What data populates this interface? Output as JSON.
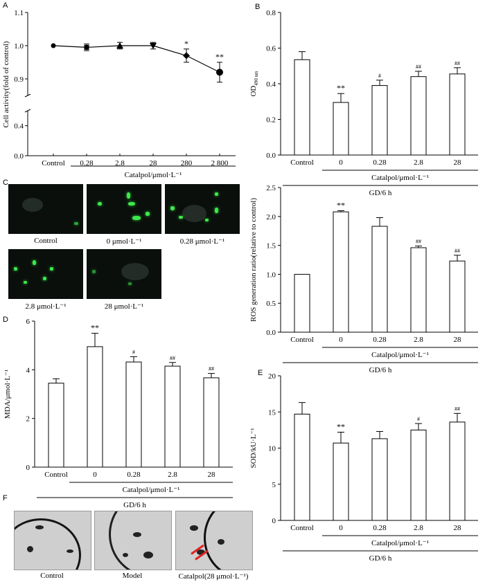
{
  "chart_data": [
    {
      "panel": "A",
      "type": "line",
      "ylabel": "Cell activity(fold of control)",
      "xlabel": "Catalpol/μmol·L⁻¹",
      "categories": [
        "Control",
        "0.28",
        "2.8",
        "28",
        "280",
        "2 800"
      ],
      "values": [
        1.0,
        0.995,
        1.0,
        1.0,
        0.97,
        0.92
      ],
      "errors": [
        0.0,
        0.01,
        0.01,
        0.01,
        0.02,
        0.03
      ],
      "markers": [
        "circle",
        "square",
        "triangle-up",
        "triangle-down",
        "diamond",
        "circle"
      ],
      "annotations": [
        "",
        "",
        "",
        "",
        "*",
        "**"
      ],
      "yticks_upper": [
        "0.9",
        "1.0",
        "1.1"
      ],
      "yticks_lower": [
        "0.4",
        "0.0"
      ],
      "ylim_upper": [
        0.85,
        1.1
      ],
      "ylim_lower": [
        0.0,
        0.6
      ]
    },
    {
      "panel": "B",
      "type": "bar",
      "ylabel": "OD",
      "ylabel_sub": "490 nm",
      "categories": [
        "Control",
        "0",
        "0.28",
        "2.8",
        "28"
      ],
      "values": [
        0.535,
        0.295,
        0.39,
        0.44,
        0.455
      ],
      "errors": [
        0.045,
        0.05,
        0.03,
        0.03,
        0.035
      ],
      "annotations": [
        "",
        "**",
        "#",
        "##",
        "##"
      ],
      "yticks": [
        "0.0",
        "0.2",
        "0.4",
        "0.6",
        "0.8"
      ],
      "ylim": [
        0,
        0.8
      ],
      "group_label": "Catalpol/μmol·L⁻¹",
      "outer_label": "GD/6 h"
    },
    {
      "panel": "ROS",
      "type": "bar",
      "ylabel": "ROS generation ratio(relative to control)",
      "categories": [
        "Control",
        "0",
        "0.28",
        "2.8",
        "28"
      ],
      "values": [
        1.0,
        2.08,
        1.83,
        1.46,
        1.23
      ],
      "errors": [
        0.0,
        0.02,
        0.15,
        0.03,
        0.1
      ],
      "annotations": [
        "",
        "**",
        "",
        "##",
        "##"
      ],
      "yticks": [
        "0.0",
        "0.5",
        "1.0",
        "1.5",
        "2.0",
        "2.5"
      ],
      "ylim": [
        0,
        2.5
      ],
      "group_label": "Catalpol/μmol·L⁻¹",
      "outer_label": "GD/6 h"
    },
    {
      "panel": "D",
      "type": "bar",
      "ylabel": "MDA/μmol·L⁻¹",
      "categories": [
        "Control",
        "0",
        "0.28",
        "2.8",
        "28"
      ],
      "values": [
        3.45,
        4.95,
        4.32,
        4.15,
        3.67
      ],
      "errors": [
        0.18,
        0.55,
        0.22,
        0.15,
        0.18
      ],
      "annotations": [
        "",
        "**",
        "#",
        "##",
        "##"
      ],
      "yticks": [
        "0",
        "2",
        "4",
        "6"
      ],
      "ylim": [
        0,
        6
      ],
      "group_label": "Catalpol/μmol·L⁻¹",
      "outer_label": "GD/6 h"
    },
    {
      "panel": "E",
      "type": "bar",
      "ylabel": "SOD/kU·L⁻¹",
      "categories": [
        "Control",
        "0",
        "0.28",
        "2.8",
        "28"
      ],
      "values": [
        14.7,
        10.7,
        11.3,
        12.5,
        13.6
      ],
      "errors": [
        1.6,
        1.5,
        1.0,
        0.9,
        1.2
      ],
      "annotations": [
        "",
        "**",
        "",
        "#",
        "##"
      ],
      "yticks": [
        "0",
        "5",
        "10",
        "15",
        "20"
      ],
      "ylim": [
        0,
        20
      ],
      "group_label": "Catalpol/μmol·L⁻¹",
      "outer_label": "GD/6 h"
    }
  ],
  "panel_letters": {
    "A": "A",
    "B": "B",
    "C": "C",
    "D": "D",
    "E": "E",
    "F": "F"
  },
  "micrographs": {
    "captions": [
      "Control",
      "0 μmol·L⁻¹",
      "0.28 μmol·L⁻¹",
      "2.8 μmol·L⁻¹",
      "28 μmol·L⁻¹"
    ]
  },
  "em": {
    "captions": [
      "Control",
      "Model",
      "Catalpol(28 μmol·L⁻¹)"
    ]
  },
  "colors": {
    "fluorescence": "#3ee84a",
    "arrow": "#d22222",
    "bar_fill": "#ffffff",
    "axis": "#000000"
  }
}
